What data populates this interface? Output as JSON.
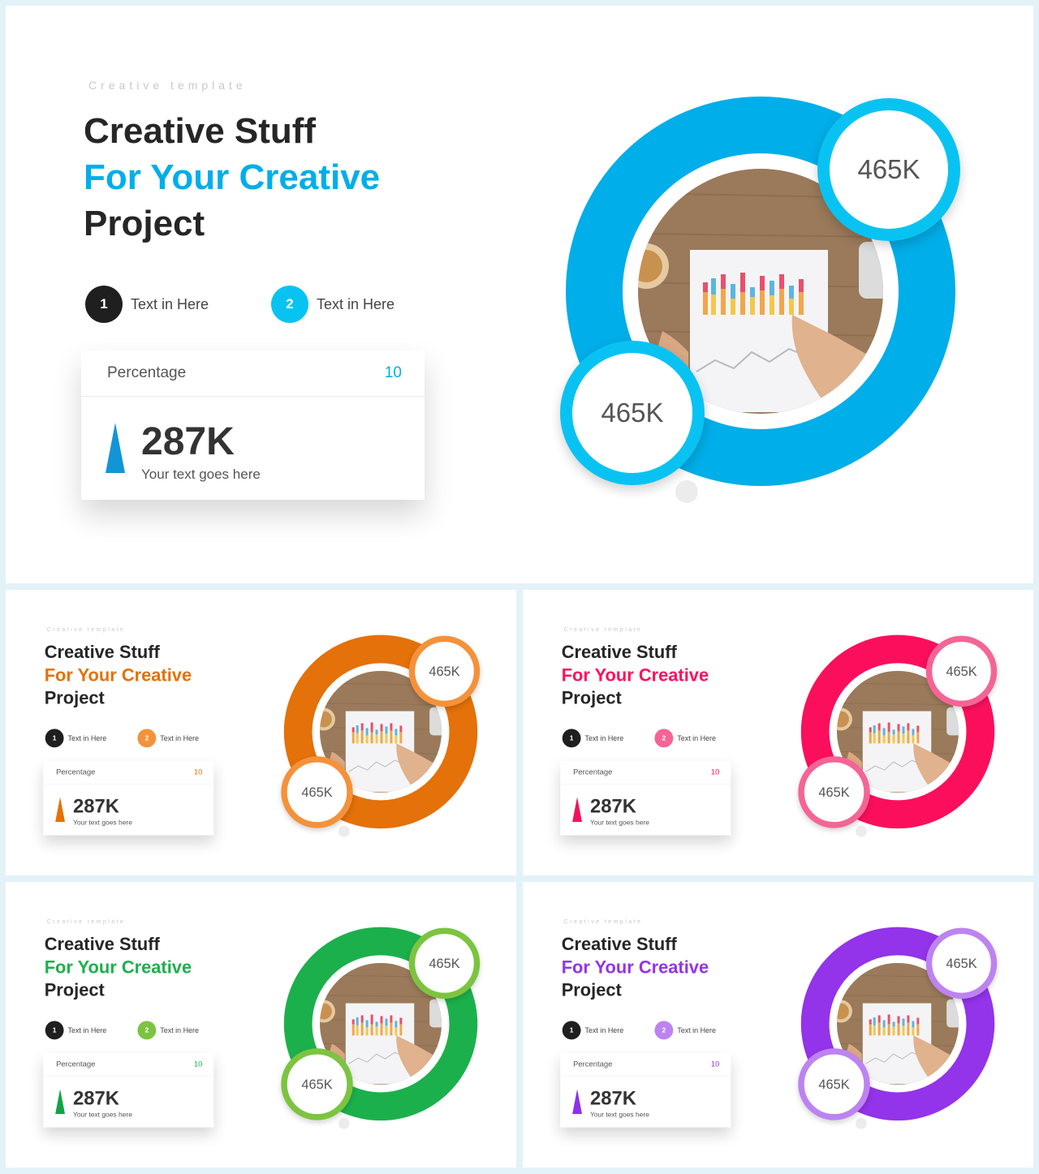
{
  "slides": [
    {
      "id": "main",
      "accent": "#00aee9",
      "bubble_border": "#08c3f2",
      "num2": "#08c3f2",
      "tri": "#1295d8"
    },
    {
      "id": "orange",
      "accent": "#e47109",
      "bubble_border": "#f4923a",
      "num2": "#f4923a",
      "tri": "#e27208"
    },
    {
      "id": "pink",
      "accent": "#fb0f5d",
      "bubble_border": "#f56496",
      "num2": "#f56496",
      "tri": "#f0125e"
    },
    {
      "id": "green",
      "accent": "#1cb04c",
      "bubble_border": "#7cc440",
      "num2": "#7cc440",
      "tri": "#12a347"
    },
    {
      "id": "purple",
      "accent": "#9333ea",
      "bubble_border": "#bd83f0",
      "num2": "#bd83f0",
      "tri": "#8e31e8"
    }
  ],
  "content": {
    "eyebrow": "Creative template",
    "title_line1": "Creative Stuff",
    "title_line2": "For Your Creative",
    "title_line3": "Project",
    "step1_num": "1",
    "step1_label": "Text in Here",
    "step2_num": "2",
    "step2_label": "Text in Here",
    "card_label": "Percentage",
    "card_value": "10",
    "stat_value": "287K",
    "stat_sub": "Your text goes here",
    "bubble_top": "465K",
    "bubble_bottom": "465K"
  },
  "icons": {
    "photo": "hand-pointing-at-bar-chart-photo",
    "stat_marker": "triangle-icon"
  }
}
